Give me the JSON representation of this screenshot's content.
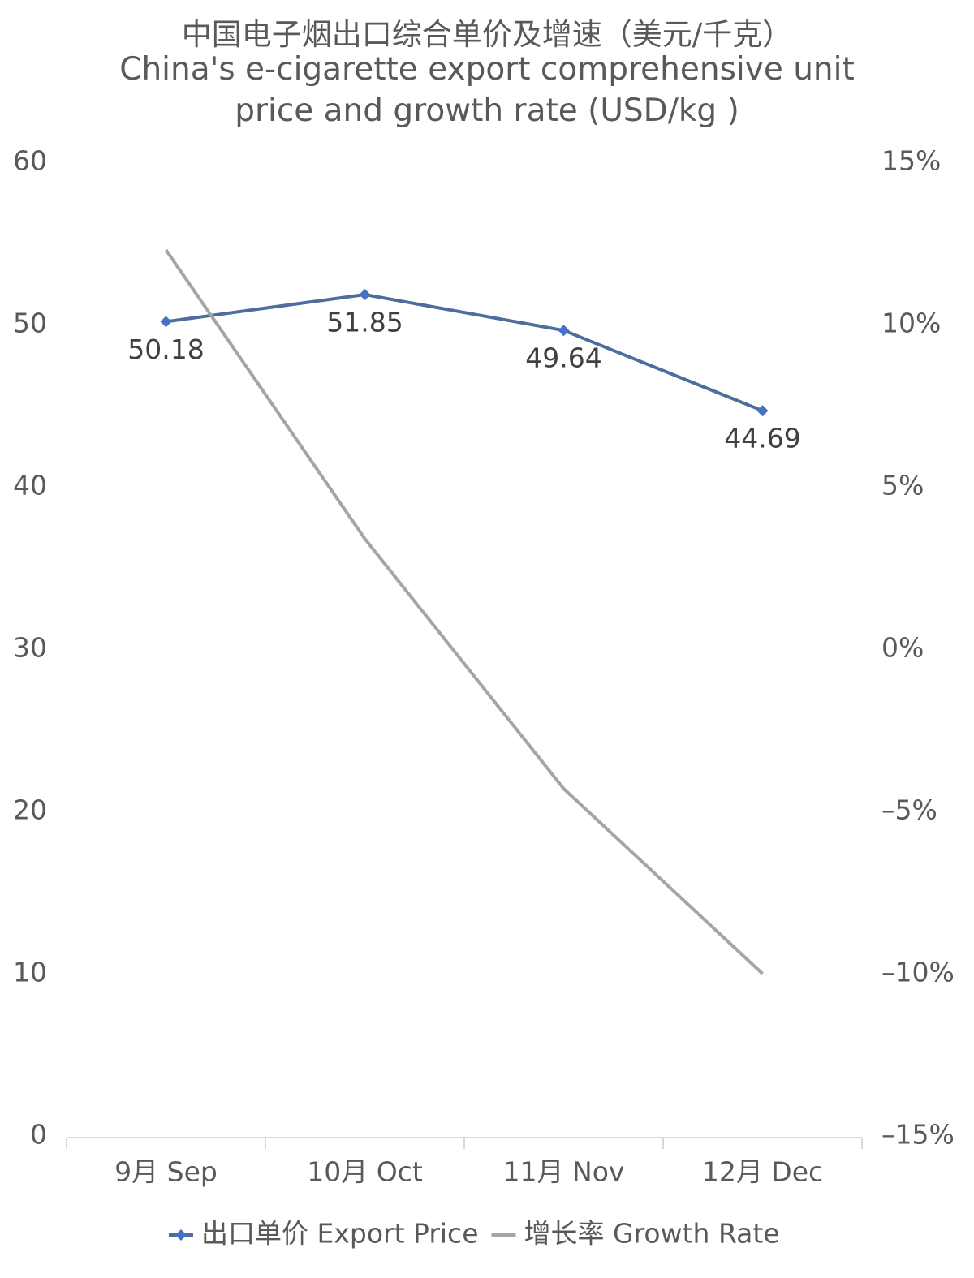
{
  "chart_data": {
    "type": "line",
    "title": "中国电子烟出口综合单价及增速（美元/千克）",
    "subtitle": "China's e-cigarette export comprehensive unit price and growth rate (USD/kg )",
    "categories": [
      "9月 Sep",
      "10月 Oct",
      "11月 Nov",
      "12月 Dec"
    ],
    "series": [
      {
        "name": "出口单价 Export Price",
        "color": "#4f6d9c",
        "marker_color": "#4472c4",
        "values": [
          50.18,
          51.85,
          49.64,
          44.69
        ],
        "data_labels": true
      },
      {
        "name": "增长率 Growth Rate",
        "color": "#a5a5a5",
        "axis": "y2",
        "values": [
          12.3,
          3.4,
          -4.3,
          -10.0
        ]
      }
    ],
    "ylim": [
      0,
      60
    ],
    "yticks": [
      0,
      10,
      20,
      30,
      40,
      50,
      60
    ],
    "y2lim": [
      -15,
      15
    ],
    "y2ticks": [
      {
        "value": 15,
        "label": "15%"
      },
      {
        "value": 10,
        "label": "10%"
      },
      {
        "value": 5,
        "label": "5%"
      },
      {
        "value": 0,
        "label": "0%"
      },
      {
        "value": -5,
        "label": "–5%"
      },
      {
        "value": -10,
        "label": "–10%"
      },
      {
        "value": -15,
        "label": "–15%"
      }
    ],
    "grid": false,
    "legend": "bottom"
  }
}
